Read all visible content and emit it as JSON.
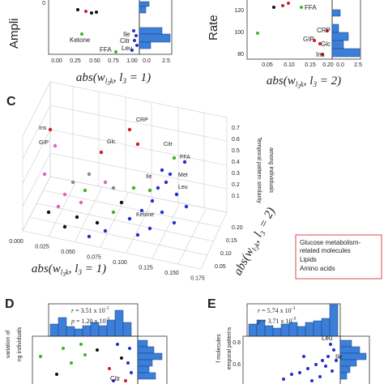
{
  "panel_a": {
    "y_label": "Ampli",
    "y_tick": "0",
    "x_ticks": [
      "0.00",
      "0.25",
      "0.50",
      "0.75",
      "1.00"
    ],
    "hist_ticks": [
      "0.0",
      "2.5"
    ],
    "x_label": [
      "abs(",
      "w",
      "l",
      "3",
      "k",
      ", l",
      "3",
      " = 1)"
    ],
    "point_labels": [
      "Ile",
      "Ketone",
      "Citr",
      "FFA",
      "Leu"
    ]
  },
  "panel_b": {
    "y_label": "Rate",
    "y_ticks": [
      "120",
      "100",
      "80"
    ],
    "x_ticks": [
      "0.05",
      "0.10",
      "0.15",
      "0.20"
    ],
    "hist_ticks": [
      "0.0",
      "2.5"
    ],
    "x_label": [
      "abs(",
      "w",
      "l",
      "3",
      "k",
      ", l",
      "3",
      " = 2)"
    ],
    "point_labels": [
      "FFA",
      "CRP",
      "GIP",
      "Glc",
      "Ins"
    ]
  },
  "panel_c": {
    "label": "C",
    "z_label": [
      "Temporal pattern similarity",
      "among individuals"
    ],
    "z_ticks": [
      "0.7",
      "0.6",
      "0.5",
      "0.4",
      "0.3",
      "0.2",
      "0.1"
    ],
    "x_ticks": [
      "0.000",
      "0.025",
      "0.050",
      "0.075",
      "0.100",
      "0.125",
      "0.150",
      "0.175"
    ],
    "y_ticks": [
      "0.20",
      "0.15",
      "0.10",
      "0.05"
    ],
    "x_label": [
      "abs(",
      "w",
      "l",
      "3",
      "k",
      ", l",
      "3",
      " = 1)"
    ],
    "y_label": [
      "abs(",
      "w",
      "l",
      "3",
      "k",
      ", l",
      "3",
      " = 2)"
    ],
    "point_labels": [
      "Ins",
      "CRP",
      "GIP",
      "Glc",
      "Citr",
      "FFA",
      "Ile",
      "Met",
      "Leu",
      "Ketone"
    ],
    "legend": [
      "Glucose metabolism-",
      "related molecules",
      "Lipids",
      "Amino acids"
    ]
  },
  "panel_d": {
    "label": "D",
    "y_label": [
      "variation of",
      "ng individuals"
    ],
    "r": [
      "r",
      " = 3.51 x 10",
      "-1"
    ],
    "p": [
      "p",
      " = 1.20 x 10",
      "-1"
    ],
    "point_labels": [
      "Citr"
    ]
  },
  "panel_e": {
    "label": "E",
    "y_label": [
      "f molecules",
      "emporal patterns"
    ],
    "r": [
      "r",
      " = 5.74 x 10",
      "-1"
    ],
    "p": [
      "p",
      " = 3.71 x 10",
      "-5"
    ],
    "y_ticks": [
      "0.8",
      "0.6"
    ],
    "point_labels": [
      "Leu",
      "Ile"
    ]
  }
}
